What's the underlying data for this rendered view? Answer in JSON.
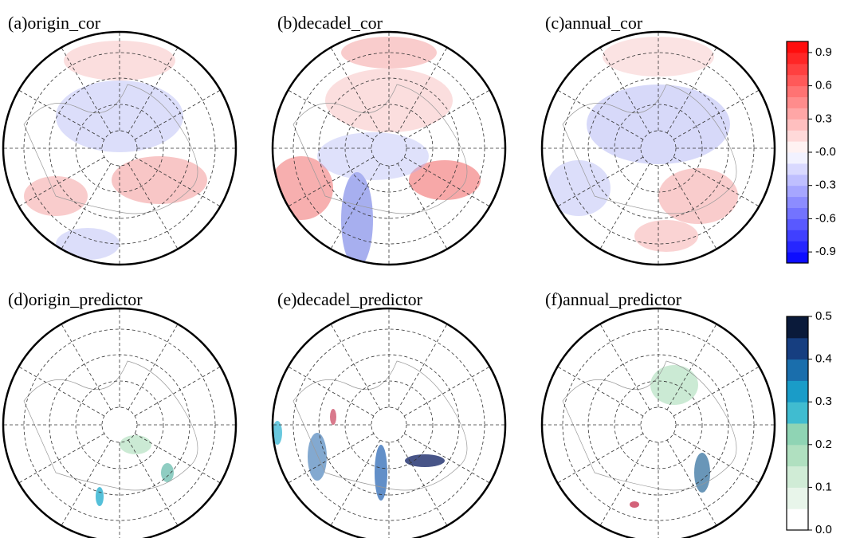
{
  "panels": [
    {
      "title": "(a)origin_cor"
    },
    {
      "title": "(b)decadel_cor"
    },
    {
      "title": "(c)annual_cor"
    },
    {
      "title": "(d)origin_predictor"
    },
    {
      "title": "(e)decadel_predictor"
    },
    {
      "title": "(f)annual_predictor"
    }
  ],
  "colorbars": [
    {
      "lim": [
        -1,
        1
      ],
      "ticks": [
        0.9,
        0.6,
        0.3,
        {
          "value": 0,
          "label": "-0.0"
        },
        -0.3,
        -0.6,
        -0.9
      ]
    },
    {
      "lim": [
        0,
        0.5
      ],
      "ticks": [
        0.5,
        0.4,
        0.3,
        0.2,
        0.1,
        {
          "value": 0,
          "label": "0.0"
        }
      ]
    }
  ]
}
